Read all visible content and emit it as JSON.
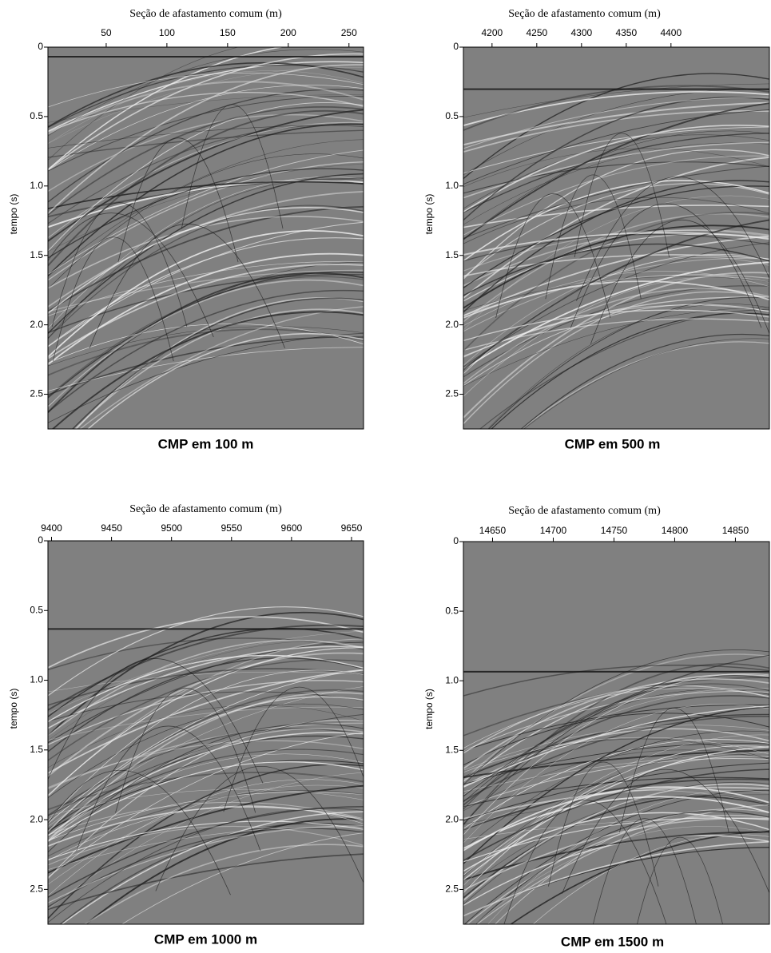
{
  "chart_data": [
    {
      "type": "image",
      "title": "CMP em 100 m",
      "xlabel": "Seção de afastamento comum (m)",
      "ylabel": "tempo (s)",
      "xlim": [
        2,
        262
      ],
      "xticks": [
        50,
        100,
        150,
        200,
        250
      ],
      "ylim": [
        0,
        2.75
      ],
      "yticks": [
        0,
        0.5,
        {
          "value": 1,
          "label": "1.0"
        },
        1.5,
        {
          "value": 2,
          "label": "2.0"
        },
        2.5
      ]
    },
    {
      "type": "image",
      "title": "CMP em 500 m",
      "xlabel": "Seção de afastamento comum (m)",
      "ylabel": "tempo (s)",
      "xlim": [
        4168,
        4510
      ],
      "xticks": [
        4200,
        4250,
        4300,
        4350,
        4400
      ],
      "ylim": [
        0,
        2.75
      ],
      "yticks": [
        0,
        0.5,
        {
          "value": 1,
          "label": "1.0"
        },
        1.5,
        {
          "value": 2,
          "label": "2.0"
        },
        2.5
      ]
    },
    {
      "type": "image",
      "title": "CMP em 1000 m",
      "xlabel": "Seção de afastamento comum (m)",
      "ylabel": "tempo (s)",
      "xlim": [
        9397,
        9660
      ],
      "xticks": [
        9400,
        9450,
        9500,
        9550,
        9600,
        9650
      ],
      "ylim": [
        0,
        2.75
      ],
      "yticks": [
        0,
        0.5,
        {
          "value": 1,
          "label": "1.0"
        },
        1.5,
        {
          "value": 2,
          "label": "2.0"
        },
        2.5
      ]
    },
    {
      "type": "image",
      "title": "CMP em 1500 m",
      "xlabel": "Seção de afastamento comum (m)",
      "ylabel": "tempo (s)",
      "xlim": [
        14626,
        14878
      ],
      "xticks": [
        14650,
        14700,
        14750,
        14800,
        14850
      ],
      "ylim": [
        0,
        2.75
      ],
      "yticks": [
        0,
        0.5,
        {
          "value": 1,
          "label": "1.0"
        },
        1.5,
        {
          "value": 2,
          "label": "2.0"
        },
        2.5
      ]
    }
  ]
}
